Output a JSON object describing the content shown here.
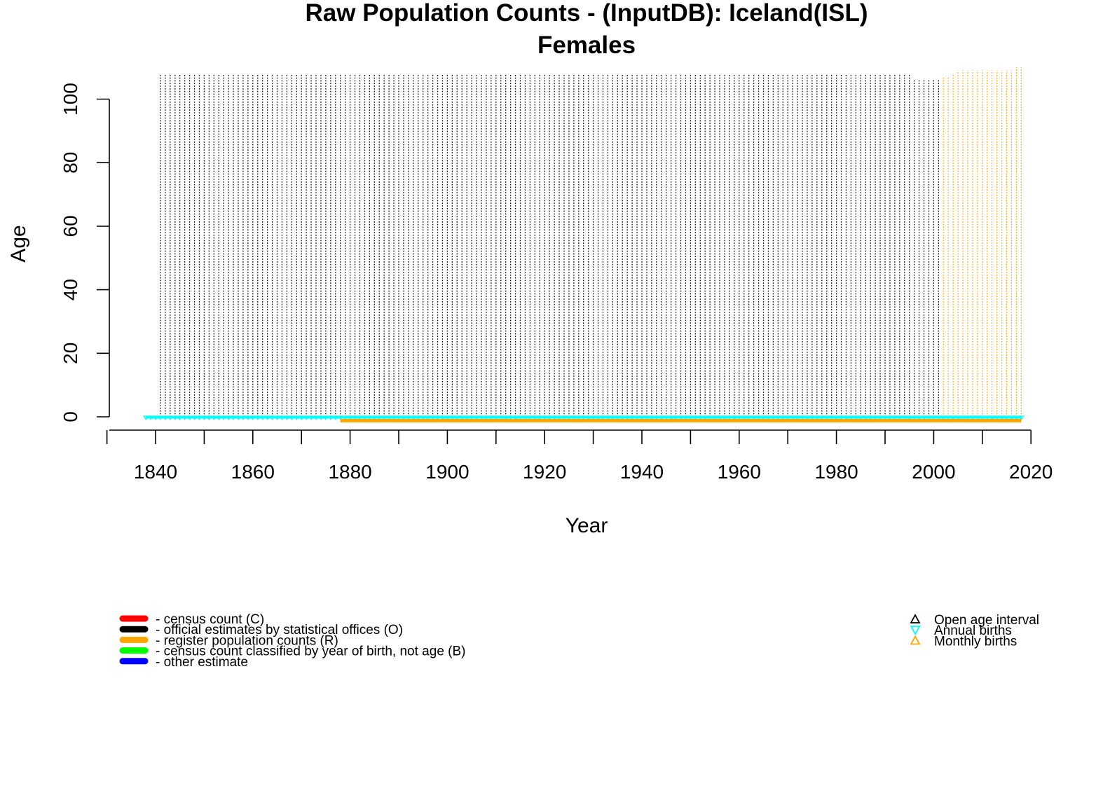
{
  "chart_data": {
    "type": "scatter",
    "title": "Raw Population Counts - (InputDB): Iceland(ISL)",
    "subtitle": "Females",
    "xlabel": "Year",
    "ylabel": "Age",
    "xlim": [
      1830,
      2020
    ],
    "ylim": [
      0,
      105
    ],
    "x_ticks": [
      1840,
      1860,
      1880,
      1900,
      1920,
      1940,
      1960,
      1980,
      2000,
      2020
    ],
    "y_ticks": [
      0,
      20,
      40,
      60,
      80,
      100
    ],
    "grid": false,
    "series": [
      {
        "name": "official estimates by statistical offices (O)",
        "color": "#000000",
        "year_ranges": [
          {
            "from": 1841,
            "to": 1995,
            "max_age": 108
          },
          {
            "from": 1996,
            "to": 2001,
            "max_age": 106
          }
        ]
      },
      {
        "name": "register population counts (R)",
        "color": "#FFA500",
        "year_ranges": [
          {
            "from": 2002,
            "to": 2003,
            "max_age": 107
          },
          {
            "from": 2004,
            "to": 2004,
            "max_age": 108
          },
          {
            "from": 2005,
            "to": 2010,
            "max_age": 109
          },
          {
            "from": 2011,
            "to": 2016,
            "max_age": 109
          },
          {
            "from": 2017,
            "to": 2018,
            "max_age": 110
          }
        ]
      }
    ],
    "annual_births": {
      "name": "Annual births",
      "color": "#00FFFF",
      "from": 1838,
      "to": 2018,
      "age": 0
    },
    "monthly_births": {
      "name": "Monthly births",
      "color": "#FFA500",
      "from": 1878,
      "to": 2018,
      "age": -1
    }
  },
  "legend_left": [
    {
      "label": "- census count (C)",
      "color": "#FF0000"
    },
    {
      "label": "- official estimates by statistical offices (O)",
      "color": "#000000"
    },
    {
      "label": "- register population counts (R)",
      "color": "#FFA500"
    },
    {
      "label": "- census count classified by year of birth, not age (B)",
      "color": "#00FF00"
    },
    {
      "label": "- other estimate",
      "color": "#0000FF"
    }
  ],
  "legend_right": [
    {
      "label": "Open age interval",
      "color": "#000000",
      "symbol": "triangle-up-icon"
    },
    {
      "label": "Annual births",
      "color": "#00FFFF",
      "symbol": "triangle-down-icon"
    },
    {
      "label": "Monthly births",
      "color": "#FFA500",
      "symbol": "triangle-up-icon"
    }
  ]
}
